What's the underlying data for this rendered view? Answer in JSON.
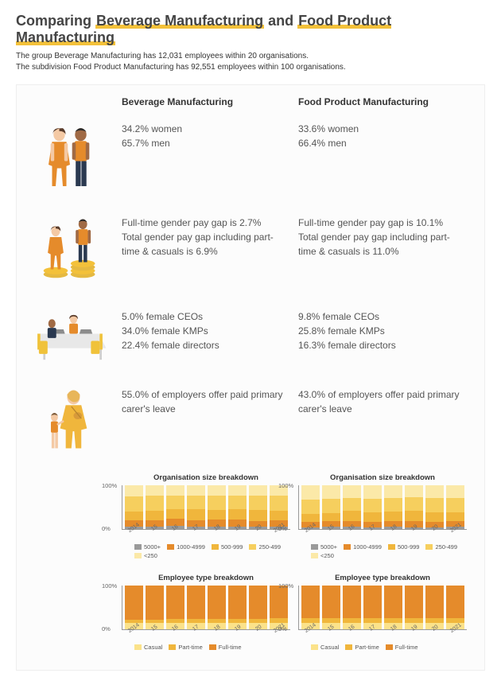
{
  "title": {
    "prefix": "Comparing ",
    "a": "Beverage Manufacturing",
    "mid": " and ",
    "b": "Food Product Manufacturing"
  },
  "subtitle_line1": "The group Beverage Manufacturing has 12,031 employees within 20 organisations.",
  "subtitle_line2": "The subdivision Food Product Manufacturing has 92,551 employees within 100 organisations.",
  "col_a": "Beverage Manufacturing",
  "col_b": "Food Product Manufacturing",
  "gender": {
    "a_line1": "34.2% women",
    "a_line2": "65.7% men",
    "b_line1": "33.6% women",
    "b_line2": "66.4% men"
  },
  "paygap": {
    "a_line1": "Full-time gender pay gap is 2.7%",
    "a_line2": "Total gender pay gap including part-time & casuals is 6.9%",
    "b_line1": "Full-time gender pay gap is 10.1%",
    "b_line2": "Total gender pay gap including part-time & casuals is 11.0%"
  },
  "leadership": {
    "a_line1": "5.0% female CEOs",
    "a_line2": "34.0% female KMPs",
    "a_line3": "22.4% female directors",
    "b_line1": "9.8% female CEOs",
    "b_line2": "25.8% female KMPs",
    "b_line3": "16.3% female directors"
  },
  "carers": {
    "a": "55.0% of employers offer paid primary carer's leave",
    "b": "43.0% of employers offer paid primary carer's leave"
  },
  "colors": {
    "accent": "#f3c13a",
    "skin1": "#f4c9a4",
    "skin2": "#a06a45",
    "orange": "#e58b2b",
    "navy": "#2a3950",
    "coin": "#e5b941",
    "desk_top": "#e8e8e8",
    "desk_leg": "#cfcfcf",
    "chair": "#f0c23a",
    "laptop": "#8c8c8c",
    "c_5000": "#9a9a9a",
    "c_1000": "#e58b2b",
    "c_500": "#f0b63c",
    "c_250": "#f6cf5e",
    "c_lt250": "#fbe9a8",
    "et_casual": "#fbe28a",
    "et_part": "#f0b63c",
    "et_full": "#e58b2b"
  },
  "org_chart": {
    "title": "Organisation size breakdown",
    "ylim": [
      0,
      100
    ],
    "xlabels": [
      "2014",
      "15",
      "16",
      "17",
      "18",
      "19",
      "20",
      "2021"
    ],
    "legend": [
      {
        "label": "5000+",
        "color": "#9a9a9a"
      },
      {
        "label": "1000-4999",
        "color": "#e58b2b"
      },
      {
        "label": "500-999",
        "color": "#f0b63c"
      },
      {
        "label": "250-499",
        "color": "#f6cf5e"
      },
      {
        "label": "<250",
        "color": "#fbe9a8"
      }
    ],
    "a": [
      [
        5,
        15,
        20,
        35,
        25
      ],
      [
        6,
        14,
        22,
        34,
        24
      ],
      [
        7,
        17,
        21,
        31,
        24
      ],
      [
        5,
        15,
        25,
        32,
        23
      ],
      [
        6,
        16,
        22,
        32,
        24
      ],
      [
        5,
        17,
        23,
        31,
        24
      ],
      [
        5,
        13,
        25,
        33,
        24
      ],
      [
        6,
        14,
        22,
        34,
        24
      ]
    ],
    "b": [
      [
        4,
        12,
        18,
        34,
        32
      ],
      [
        5,
        13,
        19,
        33,
        30
      ],
      [
        5,
        14,
        22,
        30,
        29
      ],
      [
        4,
        13,
        21,
        32,
        30
      ],
      [
        5,
        13,
        22,
        31,
        29
      ],
      [
        4,
        14,
        24,
        30,
        28
      ],
      [
        4,
        12,
        23,
        32,
        29
      ],
      [
        5,
        13,
        21,
        32,
        29
      ]
    ]
  },
  "emp_chart": {
    "title": "Employee type breakdown",
    "ylim": [
      0,
      100
    ],
    "xlabels": [
      "2014",
      "15",
      "16",
      "17",
      "18",
      "19",
      "20",
      "2021"
    ],
    "legend": [
      {
        "label": "Casual",
        "color": "#fbe28a"
      },
      {
        "label": "Part-time",
        "color": "#f0b63c"
      },
      {
        "label": "Full-time",
        "color": "#e58b2b"
      }
    ],
    "a": [
      [
        14,
        8,
        78
      ],
      [
        14,
        8,
        78
      ],
      [
        14,
        9,
        77
      ],
      [
        15,
        9,
        76
      ],
      [
        14,
        10,
        76
      ],
      [
        14,
        10,
        76
      ],
      [
        14,
        10,
        76
      ],
      [
        15,
        10,
        75
      ]
    ],
    "b": [
      [
        15,
        10,
        75
      ],
      [
        14,
        11,
        75
      ],
      [
        14,
        11,
        75
      ],
      [
        14,
        11,
        75
      ],
      [
        14,
        12,
        74
      ],
      [
        15,
        11,
        74
      ],
      [
        14,
        12,
        74
      ],
      [
        14,
        12,
        74
      ]
    ]
  }
}
